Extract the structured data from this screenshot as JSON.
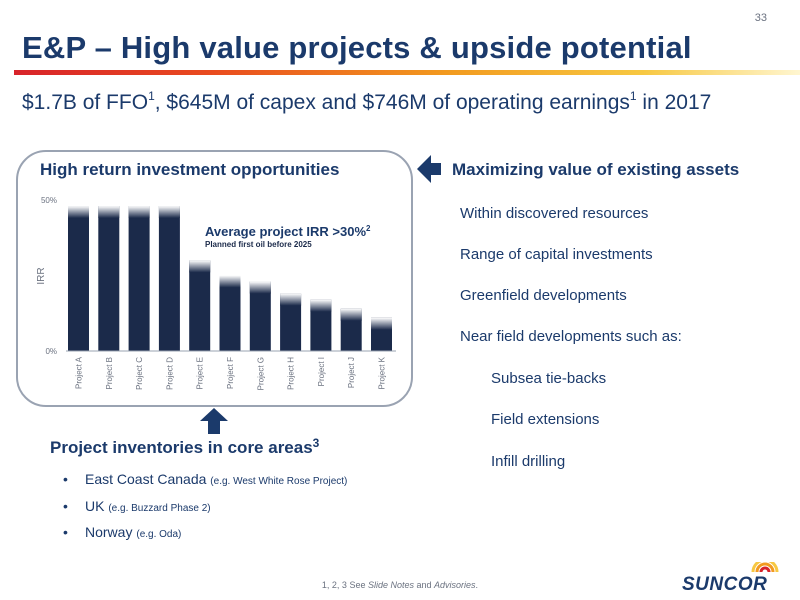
{
  "page_number": "33",
  "title": "E&P – High value projects & upside potential",
  "subtitle": {
    "p1": "$1.7B of FFO",
    "sup1": "1",
    "p2": ", $645M of capex and $746M of operating earnings",
    "sup2": "1",
    "p3": " in 2017"
  },
  "left_panel": {
    "title": "High return investment opportunities",
    "annotation": "Average project IRR >30%",
    "annotation_sup": "2",
    "annotation_sub": "Planned first oil before 2025"
  },
  "chart_data": {
    "type": "bar",
    "categories": [
      "Project A",
      "Project B",
      "Project C",
      "Project D",
      "Project E",
      "Project F",
      "Project G",
      "Project H",
      "Project I",
      "Project J",
      "Project K"
    ],
    "values": [
      48,
      48,
      48,
      48,
      30,
      25,
      23,
      19,
      17,
      14,
      11
    ],
    "ylabel": "IRR",
    "ylim": [
      0,
      50
    ],
    "yticks": [
      "0%",
      "50%"
    ],
    "bar_color": "#1b2a4a",
    "grid": false
  },
  "right_panel": {
    "title": "Maximizing value of existing assets",
    "items": [
      "Within discovered resources",
      "Range of capital investments",
      "Greenfield developments",
      "Near field developments such as:"
    ],
    "subitems": [
      "Subsea tie-backs",
      "Field extensions",
      "Infill drilling"
    ]
  },
  "inventories": {
    "title": "Project inventories in core areas",
    "title_sup": "3",
    "bullets": [
      {
        "label": "East Coast Canada",
        "note": "(e.g. West White Rose Project)"
      },
      {
        "label": "UK",
        "note": "(e.g. Buzzard Phase 2)"
      },
      {
        "label": "Norway",
        "note": "(e.g. Oda)"
      }
    ]
  },
  "footnote": {
    "refs": "1, 2, 3  See ",
    "link1": "Slide Notes",
    "and": " and ",
    "link2": "Advisories",
    "end": "."
  },
  "logo_text": "SUNCOR",
  "colors": {
    "navy": "#1b2a4a",
    "title_blue": "#1b3a6b",
    "accent_red": "#d8232a",
    "accent_yellow": "#f7c842"
  }
}
